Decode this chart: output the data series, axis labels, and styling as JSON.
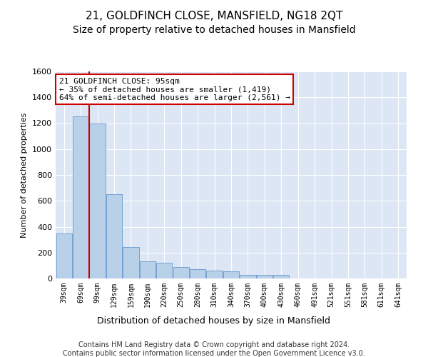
{
  "title": "21, GOLDFINCH CLOSE, MANSFIELD, NG18 2QT",
  "subtitle": "Size of property relative to detached houses in Mansfield",
  "xlabel": "Distribution of detached houses by size in Mansfield",
  "ylabel": "Number of detached properties",
  "categories": [
    "39sqm",
    "69sqm",
    "99sqm",
    "129sqm",
    "159sqm",
    "190sqm",
    "220sqm",
    "250sqm",
    "280sqm",
    "310sqm",
    "340sqm",
    "370sqm",
    "400sqm",
    "430sqm",
    "460sqm",
    "491sqm",
    "521sqm",
    "551sqm",
    "581sqm",
    "611sqm",
    "641sqm"
  ],
  "values": [
    350,
    1250,
    1200,
    650,
    245,
    130,
    120,
    90,
    70,
    60,
    55,
    30,
    30,
    25,
    0,
    0,
    0,
    0,
    0,
    0,
    0
  ],
  "bar_color": "#b8d0e8",
  "bar_edge_color": "#6699cc",
  "property_sqm": 95,
  "annotation_line1": "21 GOLDFINCH CLOSE: 95sqm",
  "annotation_line2": "← 35% of detached houses are smaller (1,419)",
  "annotation_line3": "64% of semi-detached houses are larger (2,561) →",
  "annotation_box_color": "#ffffff",
  "annotation_box_edge": "#cc0000",
  "vline_color": "#cc0000",
  "ylim": [
    0,
    1600
  ],
  "yticks": [
    0,
    200,
    400,
    600,
    800,
    1000,
    1200,
    1400,
    1600
  ],
  "background_color": "#dce6f5",
  "footer_line1": "Contains HM Land Registry data © Crown copyright and database right 2024.",
  "footer_line2": "Contains public sector information licensed under the Open Government Licence v3.0.",
  "title_fontsize": 11,
  "subtitle_fontsize": 10,
  "xlabel_fontsize": 9,
  "ylabel_fontsize": 8,
  "footer_fontsize": 7,
  "annot_fontsize": 8
}
